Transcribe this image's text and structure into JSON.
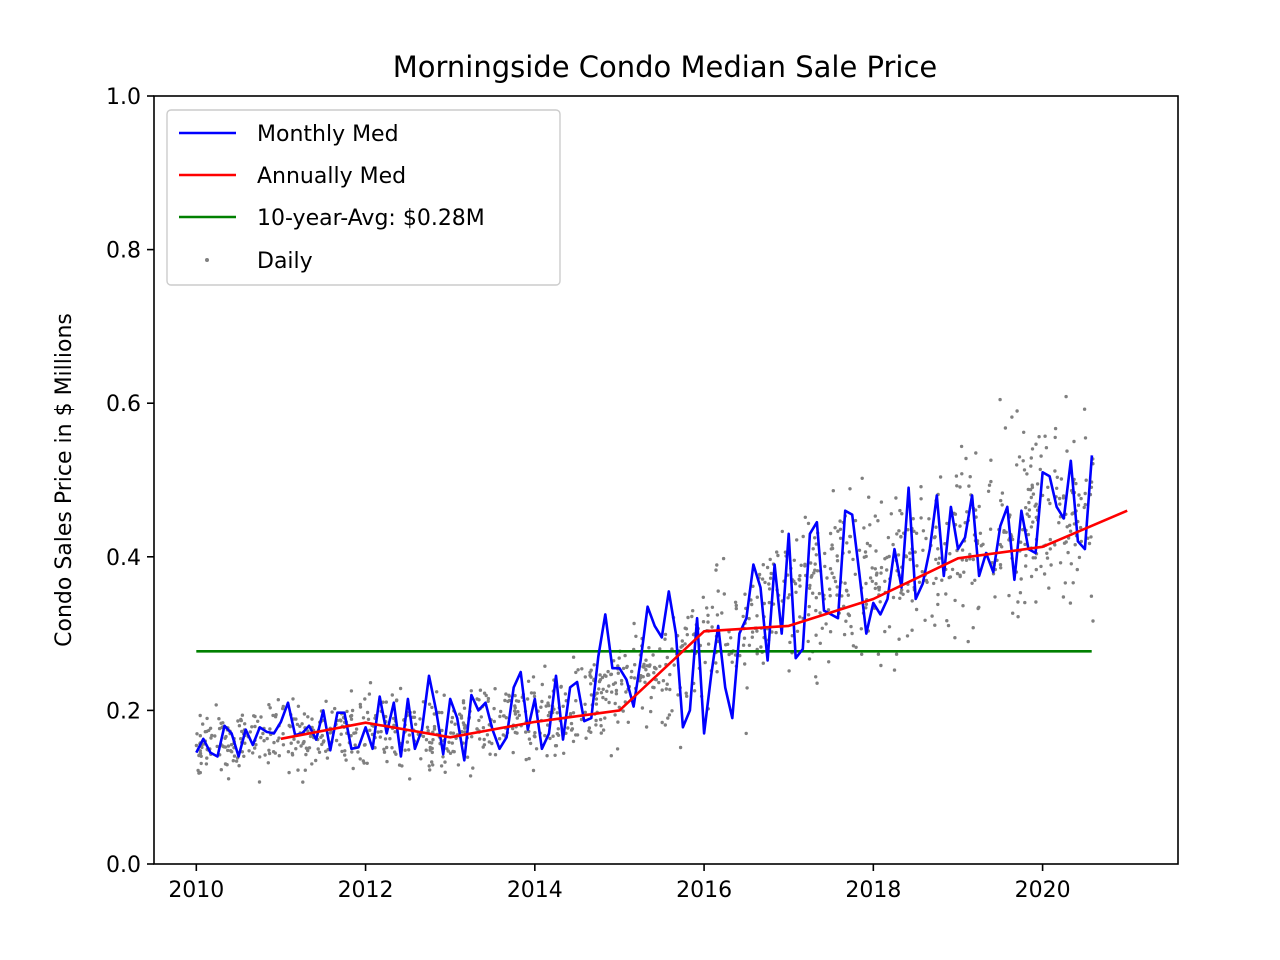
{
  "chart_data": {
    "type": "line",
    "title": "Morningside Condo Median Sale Price",
    "xlabel": "",
    "ylabel": "Condo Sales Price in $ Millions",
    "xlim": [
      2009.5,
      2021.6
    ],
    "ylim": [
      0.0,
      1.0
    ],
    "x_ticks": [
      2010,
      2012,
      2014,
      2016,
      2018,
      2020
    ],
    "x_tick_labels": [
      "2010",
      "2012",
      "2014",
      "2016",
      "2018",
      "2020"
    ],
    "y_ticks": [
      0.0,
      0.2,
      0.4,
      0.6,
      0.8,
      1.0
    ],
    "y_tick_labels": [
      "0.0",
      "0.2",
      "0.4",
      "0.6",
      "0.8",
      "1.0"
    ],
    "grid": false,
    "legend": "top-left",
    "series": [
      {
        "name": "Monthly Med",
        "kind": "line",
        "color": "#0000ff",
        "x": [
          2010.0,
          2010.083,
          2010.167,
          2010.25,
          2010.333,
          2010.417,
          2010.5,
          2010.583,
          2010.667,
          2010.75,
          2010.833,
          2010.917,
          2011.0,
          2011.083,
          2011.167,
          2011.25,
          2011.333,
          2011.417,
          2011.5,
          2011.583,
          2011.667,
          2011.75,
          2011.833,
          2011.917,
          2012.0,
          2012.083,
          2012.167,
          2012.25,
          2012.333,
          2012.417,
          2012.5,
          2012.583,
          2012.667,
          2012.75,
          2012.833,
          2012.917,
          2013.0,
          2013.083,
          2013.167,
          2013.25,
          2013.333,
          2013.417,
          2013.5,
          2013.583,
          2013.667,
          2013.75,
          2013.833,
          2013.917,
          2014.0,
          2014.083,
          2014.167,
          2014.25,
          2014.333,
          2014.417,
          2014.5,
          2014.583,
          2014.667,
          2014.75,
          2014.833,
          2014.917,
          2015.0,
          2015.083,
          2015.167,
          2015.25,
          2015.333,
          2015.417,
          2015.5,
          2015.583,
          2015.667,
          2015.75,
          2015.833,
          2015.917,
          2016.0,
          2016.083,
          2016.167,
          2016.25,
          2016.333,
          2016.417,
          2016.5,
          2016.583,
          2016.667,
          2016.75,
          2016.833,
          2016.917,
          2017.0,
          2017.083,
          2017.167,
          2017.25,
          2017.333,
          2017.417,
          2017.5,
          2017.583,
          2017.667,
          2017.75,
          2017.833,
          2017.917,
          2018.0,
          2018.083,
          2018.167,
          2018.25,
          2018.333,
          2018.417,
          2018.5,
          2018.583,
          2018.667,
          2018.75,
          2018.833,
          2018.917,
          2019.0,
          2019.083,
          2019.167,
          2019.25,
          2019.333,
          2019.417,
          2019.5,
          2019.583,
          2019.667,
          2019.75,
          2019.833,
          2019.917,
          2020.0,
          2020.083,
          2020.167,
          2020.25,
          2020.333,
          2020.417,
          2020.5,
          2020.583
        ],
        "values": [
          0.145,
          0.163,
          0.145,
          0.14,
          0.18,
          0.17,
          0.14,
          0.175,
          0.155,
          0.178,
          0.172,
          0.17,
          0.185,
          0.21,
          0.168,
          0.17,
          0.18,
          0.162,
          0.2,
          0.148,
          0.197,
          0.197,
          0.15,
          0.152,
          0.178,
          0.15,
          0.218,
          0.17,
          0.21,
          0.14,
          0.215,
          0.15,
          0.175,
          0.245,
          0.2,
          0.143,
          0.215,
          0.19,
          0.135,
          0.22,
          0.2,
          0.21,
          0.175,
          0.15,
          0.165,
          0.23,
          0.25,
          0.175,
          0.215,
          0.15,
          0.17,
          0.245,
          0.162,
          0.23,
          0.237,
          0.186,
          0.19,
          0.27,
          0.325,
          0.255,
          0.255,
          0.24,
          0.205,
          0.265,
          0.335,
          0.31,
          0.295,
          0.355,
          0.3,
          0.178,
          0.2,
          0.32,
          0.17,
          0.245,
          0.31,
          0.23,
          0.19,
          0.3,
          0.32,
          0.39,
          0.36,
          0.265,
          0.39,
          0.3,
          0.43,
          0.268,
          0.28,
          0.43,
          0.445,
          0.33,
          0.325,
          0.32,
          0.46,
          0.455,
          0.38,
          0.3,
          0.34,
          0.325,
          0.345,
          0.41,
          0.36,
          0.49,
          0.345,
          0.365,
          0.41,
          0.48,
          0.375,
          0.465,
          0.41,
          0.425,
          0.48,
          0.375,
          0.405,
          0.38,
          0.44,
          0.465,
          0.37,
          0.46,
          0.41,
          0.405,
          0.51,
          0.505,
          0.465,
          0.45,
          0.525,
          0.42,
          0.41,
          0.532
        ]
      },
      {
        "name": "Annually Med",
        "kind": "line",
        "color": "#ff0000",
        "x": [
          2011,
          2012,
          2013,
          2014,
          2015,
          2016,
          2017,
          2018,
          2019,
          2020,
          2021
        ],
        "values": [
          0.163,
          0.184,
          0.165,
          0.185,
          0.2,
          0.303,
          0.31,
          0.345,
          0.398,
          0.413,
          0.46
        ]
      },
      {
        "name": "10-year-Avg: $0.28M",
        "kind": "line",
        "color": "#008000",
        "x": [
          2010,
          2020.58
        ],
        "values": [
          0.277,
          0.277
        ]
      },
      {
        "name": "Daily",
        "kind": "scatter",
        "color": "#808080",
        "trend": [
          [
            2010,
            0.155
          ],
          [
            2011,
            0.17
          ],
          [
            2012,
            0.175
          ],
          [
            2013,
            0.175
          ],
          [
            2014,
            0.19
          ],
          [
            2015,
            0.225
          ],
          [
            2016,
            0.285
          ],
          [
            2017,
            0.34
          ],
          [
            2018,
            0.38
          ],
          [
            2019,
            0.42
          ],
          [
            2020,
            0.455
          ],
          [
            2020.6,
            0.47
          ]
        ],
        "count": 1300,
        "x_range": [
          2010.0,
          2020.6
        ],
        "values_range": [
          0.1,
          0.65
        ]
      }
    ]
  }
}
